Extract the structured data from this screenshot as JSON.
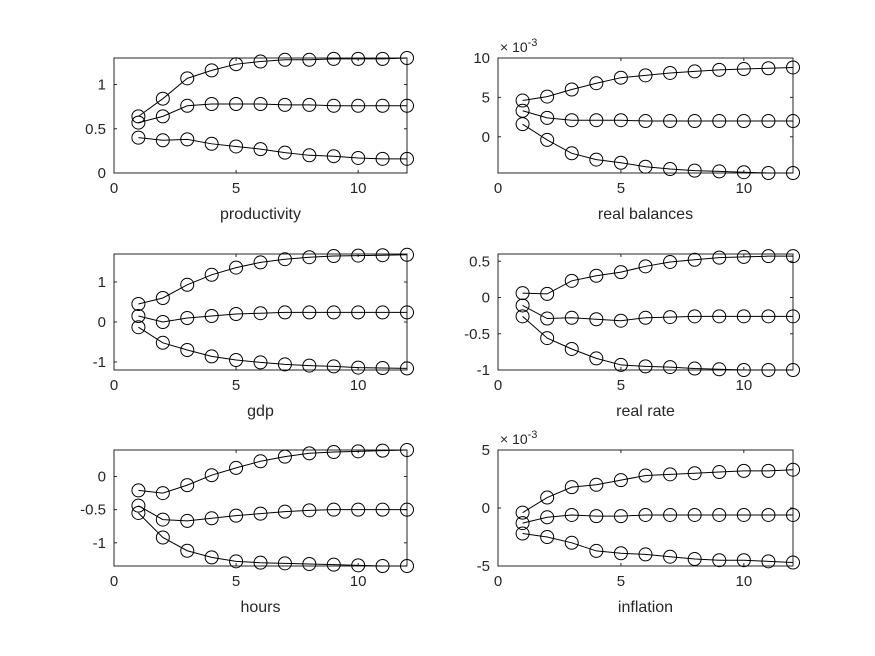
{
  "colors": {
    "line": "#000000",
    "axes": "#262626",
    "background": "#ffffff"
  },
  "chart_data": [
    {
      "type": "line",
      "title": "",
      "xlabel": "productivity",
      "ylabel": "",
      "x": [
        1,
        2,
        3,
        4,
        5,
        6,
        7,
        8,
        9,
        10,
        11,
        12
      ],
      "xlim": [
        0,
        12
      ],
      "ylim": [
        0,
        1.3
      ],
      "xticks": [
        0,
        5,
        10
      ],
      "yticks": [
        0,
        0.5,
        1
      ],
      "xtick_labels": [
        "0",
        "5",
        "10"
      ],
      "ytick_labels": [
        "0",
        "0.5",
        "1"
      ],
      "exponent_label": "",
      "marker": "circle",
      "series": [
        {
          "values": [
            0.64,
            0.84,
            1.07,
            1.16,
            1.23,
            1.26,
            1.28,
            1.28,
            1.29,
            1.29,
            1.29,
            1.3
          ]
        },
        {
          "values": [
            0.57,
            0.64,
            0.76,
            0.78,
            0.78,
            0.78,
            0.77,
            0.77,
            0.76,
            0.76,
            0.76,
            0.76
          ]
        },
        {
          "values": [
            0.4,
            0.37,
            0.38,
            0.33,
            0.3,
            0.27,
            0.23,
            0.2,
            0.19,
            0.17,
            0.16,
            0.16
          ]
        }
      ]
    },
    {
      "type": "line",
      "title": "",
      "xlabel": "real balances",
      "ylabel": "",
      "x": [
        1,
        2,
        3,
        4,
        5,
        6,
        7,
        8,
        9,
        10,
        11,
        12
      ],
      "xlim": [
        0,
        12
      ],
      "ylim": [
        -4.6,
        10
      ],
      "xticks": [
        0,
        5,
        10
      ],
      "yticks": [
        0,
        5,
        10
      ],
      "xtick_labels": [
        "0",
        "5",
        "10"
      ],
      "ytick_labels": [
        "0",
        "5",
        "10"
      ],
      "exponent_label": "× 10^-3",
      "marker": "circle",
      "series": [
        {
          "values": [
            4.6,
            5.1,
            6.0,
            6.8,
            7.5,
            7.8,
            8.1,
            8.3,
            8.5,
            8.6,
            8.7,
            8.8
          ]
        },
        {
          "values": [
            3.3,
            2.4,
            2.1,
            2.1,
            2.1,
            2.0,
            2.0,
            2.0,
            2.0,
            2.0,
            2.0,
            2.0
          ]
        },
        {
          "values": [
            1.6,
            -0.4,
            -2.1,
            -2.9,
            -3.3,
            -3.8,
            -4.1,
            -4.3,
            -4.4,
            -4.5,
            -4.6,
            -4.6
          ]
        }
      ]
    },
    {
      "type": "line",
      "title": "",
      "xlabel": "gdp",
      "ylabel": "",
      "x": [
        1,
        2,
        3,
        4,
        5,
        6,
        7,
        8,
        9,
        10,
        11,
        12
      ],
      "xlim": [
        0,
        12
      ],
      "ylim": [
        -1.2,
        1.7
      ],
      "xticks": [
        0,
        5,
        10
      ],
      "yticks": [
        -1,
        0,
        1
      ],
      "xtick_labels": [
        "0",
        "5",
        "10"
      ],
      "ytick_labels": [
        "-1",
        "0",
        "1"
      ],
      "exponent_label": "",
      "marker": "circle",
      "series": [
        {
          "values": [
            0.45,
            0.6,
            0.93,
            1.18,
            1.36,
            1.49,
            1.57,
            1.62,
            1.65,
            1.66,
            1.67,
            1.68
          ]
        },
        {
          "values": [
            0.15,
            0.0,
            0.1,
            0.15,
            0.2,
            0.22,
            0.24,
            0.24,
            0.24,
            0.24,
            0.24,
            0.24
          ]
        },
        {
          "values": [
            -0.13,
            -0.52,
            -0.7,
            -0.86,
            -0.95,
            -1.01,
            -1.06,
            -1.09,
            -1.11,
            -1.14,
            -1.15,
            -1.16
          ]
        }
      ]
    },
    {
      "type": "line",
      "title": "",
      "xlabel": "real rate",
      "ylabel": "",
      "x": [
        1,
        2,
        3,
        4,
        5,
        6,
        7,
        8,
        9,
        10,
        11,
        12
      ],
      "xlim": [
        0,
        12
      ],
      "ylim": [
        -1.0,
        0.6
      ],
      "xticks": [
        0,
        5,
        10
      ],
      "yticks": [
        -1,
        -0.5,
        0,
        0.5
      ],
      "xtick_labels": [
        "0",
        "5",
        "10"
      ],
      "ytick_labels": [
        "-1",
        "-0.5",
        "0",
        "0.5"
      ],
      "exponent_label": "",
      "marker": "circle",
      "series": [
        {
          "values": [
            0.06,
            0.05,
            0.23,
            0.3,
            0.35,
            0.43,
            0.49,
            0.52,
            0.55,
            0.56,
            0.57,
            0.57
          ]
        },
        {
          "values": [
            -0.11,
            -0.29,
            -0.28,
            -0.3,
            -0.32,
            -0.28,
            -0.27,
            -0.26,
            -0.26,
            -0.26,
            -0.26,
            -0.26
          ]
        },
        {
          "values": [
            -0.26,
            -0.56,
            -0.71,
            -0.84,
            -0.93,
            -0.95,
            -0.96,
            -0.98,
            -0.99,
            -1.0,
            -1.0,
            -1.0
          ]
        }
      ]
    },
    {
      "type": "line",
      "title": "",
      "xlabel": "hours",
      "ylabel": "",
      "x": [
        1,
        2,
        3,
        4,
        5,
        6,
        7,
        8,
        9,
        10,
        11,
        12
      ],
      "xlim": [
        0,
        12
      ],
      "ylim": [
        -1.35,
        0.4
      ],
      "xticks": [
        0,
        5,
        10
      ],
      "yticks": [
        -1,
        -0.5,
        0
      ],
      "xtick_labels": [
        "0",
        "5",
        "10"
      ],
      "ytick_labels": [
        "-1",
        "-0.5",
        "0"
      ],
      "exponent_label": "",
      "marker": "circle",
      "series": [
        {
          "values": [
            -0.21,
            -0.25,
            -0.13,
            0.02,
            0.13,
            0.23,
            0.3,
            0.35,
            0.37,
            0.38,
            0.39,
            0.4
          ]
        },
        {
          "values": [
            -0.44,
            -0.65,
            -0.67,
            -0.63,
            -0.59,
            -0.56,
            -0.53,
            -0.51,
            -0.5,
            -0.5,
            -0.5,
            -0.5
          ]
        },
        {
          "values": [
            -0.55,
            -0.92,
            -1.12,
            -1.22,
            -1.28,
            -1.3,
            -1.31,
            -1.32,
            -1.33,
            -1.34,
            -1.35,
            -1.35
          ]
        }
      ]
    },
    {
      "type": "line",
      "title": "",
      "xlabel": "inflation",
      "ylabel": "",
      "x": [
        1,
        2,
        3,
        4,
        5,
        6,
        7,
        8,
        9,
        10,
        11,
        12
      ],
      "xlim": [
        0,
        12
      ],
      "ylim": [
        -5,
        5
      ],
      "xticks": [
        0,
        5,
        10
      ],
      "yticks": [
        -5,
        0,
        5
      ],
      "xtick_labels": [
        "0",
        "5",
        "10"
      ],
      "ytick_labels": [
        "-5",
        "0",
        "5"
      ],
      "exponent_label": "× 10^-3",
      "marker": "circle",
      "series": [
        {
          "values": [
            -0.4,
            0.9,
            1.8,
            2.0,
            2.4,
            2.8,
            2.9,
            3.0,
            3.1,
            3.2,
            3.2,
            3.3
          ]
        },
        {
          "values": [
            -1.3,
            -0.8,
            -0.6,
            -0.7,
            -0.7,
            -0.6,
            -0.6,
            -0.6,
            -0.6,
            -0.6,
            -0.6,
            -0.6
          ]
        },
        {
          "values": [
            -2.2,
            -2.5,
            -3.0,
            -3.7,
            -3.9,
            -4.0,
            -4.2,
            -4.4,
            -4.5,
            -4.5,
            -4.6,
            -4.7
          ]
        }
      ]
    }
  ]
}
